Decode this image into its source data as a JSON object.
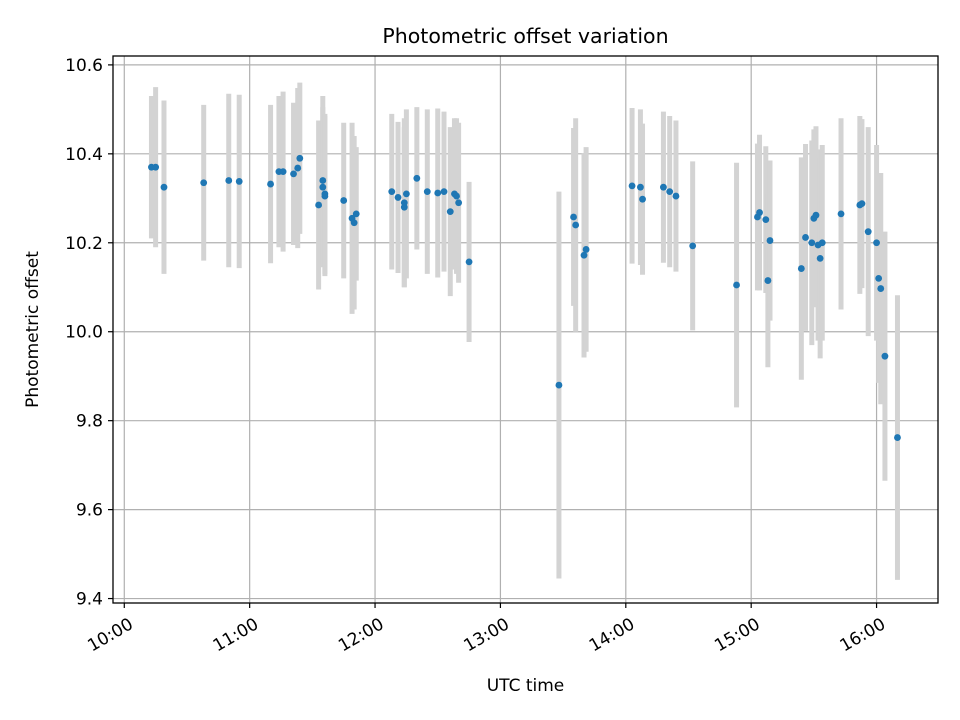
{
  "chart_data": {
    "type": "scatter",
    "title": "Photometric offset variation",
    "xlabel": "UTC time",
    "ylabel": "Photometric offset",
    "x_unit": "hours UTC",
    "xlim": [
      9.91,
      16.49
    ],
    "ylim": [
      9.39,
      10.62
    ],
    "x_ticks": [
      {
        "value": 10,
        "label": "10:00"
      },
      {
        "value": 11,
        "label": "11:00"
      },
      {
        "value": 12,
        "label": "12:00"
      },
      {
        "value": 13,
        "label": "13:00"
      },
      {
        "value": 14,
        "label": "14:00"
      },
      {
        "value": 15,
        "label": "15:00"
      },
      {
        "value": 16,
        "label": "16:00"
      }
    ],
    "y_ticks": [
      {
        "value": 9.4,
        "label": "9.4"
      },
      {
        "value": 9.6,
        "label": "9.6"
      },
      {
        "value": 9.8,
        "label": "9.8"
      },
      {
        "value": 10.0,
        "label": "10.0"
      },
      {
        "value": 10.2,
        "label": "10.2"
      },
      {
        "value": 10.4,
        "label": "10.4"
      },
      {
        "value": 10.6,
        "label": "10.6"
      }
    ],
    "grid": true,
    "colors": {
      "point": "#1f77b4",
      "errorbar": "#d3d3d3",
      "grid": "#b0b0b0"
    },
    "series": [
      {
        "x": [
          "10:13",
          "10:15",
          "10:19",
          "10:38",
          "10:50",
          "10:55",
          "11:10",
          "11:14",
          "11:16",
          "11:21",
          "11:23",
          "11:24",
          "11:33",
          "11:35",
          "11:35",
          "11:36",
          "11:36",
          "11:45",
          "11:49",
          "11:50",
          "11:51",
          "12:08",
          "12:11",
          "12:14",
          "12:14",
          "12:15",
          "12:20",
          "12:25",
          "12:30",
          "12:33",
          "12:36",
          "12:38",
          "12:39",
          "12:40",
          "12:45",
          "13:28",
          "13:35",
          "13:36",
          "13:40",
          "13:41",
          "14:03",
          "14:07",
          "14:08",
          "14:18",
          "14:21",
          "14:24",
          "14:32",
          "14:53",
          "15:03",
          "15:04",
          "15:07",
          "15:08",
          "15:09",
          "15:24",
          "15:26",
          "15:29",
          "15:30",
          "15:31",
          "15:32",
          "15:33",
          "15:34",
          "15:43",
          "15:52",
          "15:53",
          "15:56",
          "16:00",
          "16:01",
          "16:02",
          "16:04",
          "16:10"
        ],
        "y": [
          10.37,
          10.37,
          10.325,
          10.335,
          10.34,
          10.338,
          10.332,
          10.36,
          10.36,
          10.355,
          10.368,
          10.39,
          10.285,
          10.34,
          10.325,
          10.31,
          10.305,
          10.295,
          10.255,
          10.245,
          10.265,
          10.315,
          10.302,
          10.28,
          10.29,
          10.31,
          10.345,
          10.315,
          10.312,
          10.315,
          10.27,
          10.31,
          10.305,
          10.29,
          10.157,
          9.88,
          10.258,
          10.24,
          10.172,
          10.185,
          10.328,
          10.325,
          10.298,
          10.325,
          10.315,
          10.305,
          10.193,
          10.105,
          10.258,
          10.268,
          10.252,
          10.115,
          10.205,
          10.142,
          10.212,
          10.2,
          10.255,
          10.262,
          10.195,
          10.165,
          10.2,
          10.265,
          10.285,
          10.288,
          10.225,
          10.2,
          10.12,
          10.097,
          9.945,
          9.762
        ],
        "err": [
          0.16,
          0.18,
          0.195,
          0.175,
          0.195,
          0.195,
          0.178,
          0.17,
          0.18,
          0.16,
          0.18,
          0.17,
          0.19,
          0.19,
          0.18,
          0.18,
          0.18,
          0.175,
          0.215,
          0.195,
          0.15,
          0.175,
          0.17,
          0.18,
          0.19,
          0.19,
          0.16,
          0.185,
          0.19,
          0.18,
          0.19,
          0.17,
          0.175,
          0.18,
          0.18,
          0.435,
          0.2,
          0.24,
          0.23,
          0.23,
          0.175,
          0.175,
          0.17,
          0.17,
          0.17,
          0.17,
          0.19,
          0.275,
          0.165,
          0.175,
          0.165,
          0.195,
          0.18,
          0.25,
          0.21,
          0.23,
          0.2,
          0.2,
          0.215,
          0.225,
          0.22,
          0.215,
          0.2,
          0.19,
          0.235,
          0.22,
          0.235,
          0.26,
          0.28,
          0.32
        ]
      }
    ]
  }
}
